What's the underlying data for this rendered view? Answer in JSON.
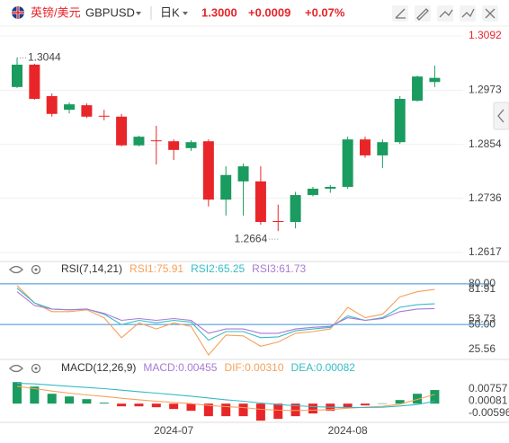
{
  "header": {
    "name": "英镑/美元",
    "symbol": "GBPUSD",
    "period": "日K",
    "price": "1.3000",
    "change": "+0.0009",
    "change_percent": "+0.07%"
  },
  "chart_data": [
    {
      "type": "candlestick",
      "up_color": "#1a9b5f",
      "down_color": "#e8262a",
      "open": [
        1.298,
        1.3029,
        1.296,
        1.293,
        1.294,
        1.2917,
        1.2915,
        1.2852,
        1.2863,
        1.2861,
        1.2846,
        1.2861,
        1.2733,
        1.2773,
        1.2773,
        1.2686,
        1.2684,
        1.2743,
        1.2757,
        1.2761,
        1.2865,
        1.283,
        1.2859,
        1.295,
        1.2991
      ],
      "high": [
        1.3044,
        1.3031,
        1.2966,
        1.2946,
        1.2944,
        1.293,
        1.2921,
        1.2873,
        1.2895,
        1.2865,
        1.2863,
        1.2865,
        1.2806,
        1.2812,
        1.2806,
        1.2722,
        1.275,
        1.2761,
        1.2765,
        1.2871,
        1.2871,
        1.2865,
        1.296,
        1.3005,
        1.3027
      ],
      "low": [
        1.2978,
        1.2952,
        1.2915,
        1.2922,
        1.2912,
        1.2907,
        1.285,
        1.285,
        1.281,
        1.282,
        1.284,
        1.2718,
        1.2698,
        1.2698,
        1.2678,
        1.2664,
        1.267,
        1.274,
        1.2748,
        1.2757,
        1.2825,
        1.2802,
        1.2855,
        1.2948,
        1.298
      ],
      "close": [
        1.3029,
        1.2954,
        1.2921,
        1.2942,
        1.2915,
        1.2915,
        1.2852,
        1.2871,
        1.2861,
        1.2842,
        1.2859,
        1.2733,
        1.2787,
        1.2806,
        1.2684,
        1.2684,
        1.2743,
        1.2757,
        1.2761,
        1.2865,
        1.283,
        1.2859,
        1.2954,
        1.3003,
        1.3
      ],
      "ylim": [
        1.2617,
        1.3092
      ],
      "yticks": [
        1.3092,
        1.2973,
        1.2854,
        1.2736,
        1.2617
      ],
      "top_tick_color": "#e8262a",
      "grid": true,
      "high_annotation": 1.3044,
      "low_annotation": 1.2664
    },
    {
      "type": "line",
      "title": "RSI(7,14,21)",
      "legend_separator": ":",
      "series": [
        {
          "name": "RSI1",
          "color": "#f5a15b",
          "values": [
            78.7,
            65.9,
            59.5,
            59.5,
            60.8,
            55.0,
            40.3,
            51.2,
            46.7,
            51.2,
            48.6,
            27.5,
            42.2,
            41.6,
            33.9,
            37.1,
            43.5,
            44.8,
            46.7,
            62.7,
            55.0,
            57.6,
            70.4,
            74.2,
            75.91
          ]
        },
        {
          "name": "RSI2",
          "color": "#35bcc4",
          "values": [
            76.8,
            65.9,
            61.4,
            60.8,
            61.4,
            57.6,
            49.9,
            53.1,
            51.2,
            53.1,
            51.8,
            38.4,
            44.8,
            44.8,
            40.3,
            40.9,
            45.4,
            46.7,
            47.9,
            56.3,
            53.1,
            55.0,
            62.7,
            64.6,
            65.25
          ]
        },
        {
          "name": "RSI3",
          "color": "#a77ad6",
          "values": [
            74.2,
            64.0,
            61.4,
            60.8,
            61.4,
            58.2,
            53.1,
            54.4,
            53.1,
            54.4,
            53.1,
            43.5,
            46.7,
            46.7,
            43.5,
            43.5,
            46.7,
            47.9,
            48.6,
            55.0,
            53.1,
            54.4,
            59.5,
            61.4,
            61.73
          ]
        }
      ],
      "ylim": [
        25.56,
        81.91
      ],
      "yticks": [
        81.91,
        {
          "value": 80,
          "label": "80.00"
        },
        53.73,
        {
          "value": 50,
          "label": "50.00"
        },
        25.56
      ],
      "reference_lines": [
        80,
        50
      ],
      "reference_color": "#3b8fd9"
    },
    {
      "type": "combo",
      "title": "MACD(12,26,9)",
      "legend_separator": ":",
      "categories": [
        null,
        null,
        null,
        null,
        null,
        null,
        null,
        null,
        null,
        "2024-07",
        null,
        null,
        null,
        null,
        null,
        null,
        null,
        null,
        null,
        "2024-08",
        null,
        null,
        null,
        null,
        null
      ],
      "series": [
        {
          "name": "MACD",
          "type": "bar",
          "color": "#a77ad6",
          "up_color": "#1a9b5f",
          "down_color": "#e8262a",
          "values": [
            0.0072,
            0.0057,
            0.0033,
            0.0024,
            0.0015,
            0.0003,
            -0.0009,
            -0.0009,
            -0.0012,
            -0.0018,
            -0.0024,
            -0.0042,
            -0.0042,
            -0.0042,
            -0.0057,
            -0.0051,
            -0.0042,
            -0.0033,
            -0.0024,
            -0.0012,
            -0.0006,
            0.0001,
            0.0012,
            0.0033,
            0.00455
          ]
        },
        {
          "name": "DIF",
          "type": "line",
          "color": "#f5a15b",
          "values": [
            0.0058,
            0.005,
            0.0042,
            0.0035,
            0.0029,
            0.0024,
            0.0018,
            0.0013,
            0.0008,
            0.0004,
            0.0,
            -0.0006,
            -0.001,
            -0.0013,
            -0.0019,
            -0.0022,
            -0.0023,
            -0.0022,
            -0.002,
            -0.0015,
            -0.0012,
            -0.0009,
            -0.0002,
            0.0014,
            0.0031
          ],
          "value_labels": [
            null,
            null,
            null,
            null,
            null,
            null,
            null,
            null,
            null,
            null,
            null,
            null,
            null,
            null,
            null,
            null,
            null,
            null,
            null,
            null,
            null,
            null,
            null,
            null,
            "0.00310"
          ]
        },
        {
          "name": "DEA",
          "type": "line",
          "color": "#35bcc4",
          "values": [
            0.0068,
            0.0066,
            0.0062,
            0.0058,
            0.0054,
            0.005,
            0.0045,
            0.004,
            0.0035,
            0.003,
            0.0025,
            0.0019,
            0.0013,
            0.0008,
            0.0002,
            -0.0003,
            -0.0007,
            -0.001,
            -0.0012,
            -0.0013,
            -0.0013,
            -0.0012,
            -0.0008,
            -0.0003,
            0.00082
          ]
        }
      ],
      "ylim": [
        -0.00596,
        0.00757
      ],
      "yticks": [
        0.00757,
        0.00081,
        -0.00596
      ]
    }
  ]
}
